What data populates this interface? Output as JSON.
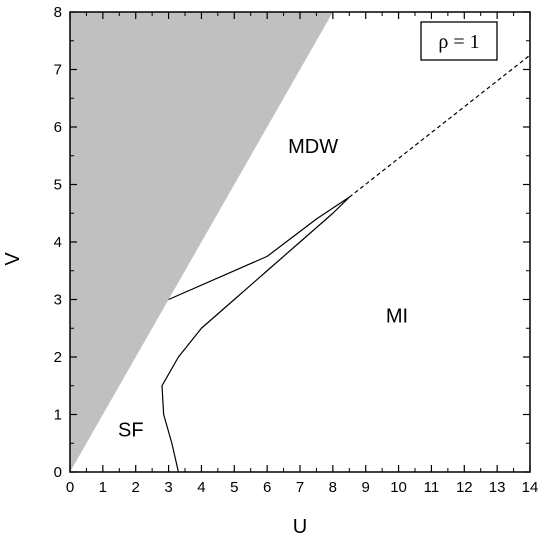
{
  "chart_data": {
    "type": "line",
    "title": "",
    "xlabel": "U",
    "ylabel": "V",
    "xlim": [
      0,
      14
    ],
    "ylim": [
      0,
      8
    ],
    "x_ticks": [
      "0",
      "1",
      "2",
      "3",
      "4",
      "5",
      "6",
      "7",
      "8",
      "9",
      "10",
      "11",
      "12",
      "13",
      "14"
    ],
    "y_ticks": [
      "0",
      "1",
      "2",
      "3",
      "4",
      "5",
      "6",
      "7",
      "8"
    ],
    "grid": false,
    "legend_text": "ρ = 1",
    "legend_placement": "top-right",
    "shaded_region": {
      "color": "#c0c0c0",
      "points": [
        [
          0,
          0
        ],
        [
          8,
          8
        ],
        [
          0,
          8
        ]
      ]
    },
    "series": [
      {
        "style": "solid",
        "color": "#000000",
        "points": [
          [
            3.3,
            0
          ],
          [
            3.1,
            0.5
          ],
          [
            2.85,
            1.0
          ],
          [
            2.8,
            1.5
          ],
          [
            3.3,
            2.0
          ],
          [
            4.0,
            2.5
          ],
          [
            5.0,
            3.0
          ],
          [
            6.0,
            3.5
          ],
          [
            7.0,
            4.0
          ],
          [
            8.0,
            4.5
          ],
          [
            8.5,
            4.78
          ]
        ]
      },
      {
        "style": "solid",
        "color": "#000000",
        "points": [
          [
            3.0,
            3.0
          ],
          [
            6.0,
            3.75
          ],
          [
            7.5,
            4.4
          ],
          [
            8.5,
            4.78
          ]
        ]
      },
      {
        "style": "dashed",
        "color": "#000000",
        "points": [
          [
            8.5,
            4.78
          ],
          [
            14.0,
            7.25
          ]
        ]
      }
    ],
    "annotations": [
      {
        "text": "MDW",
        "x": 7.4,
        "y": 5.55
      },
      {
        "text": "MI",
        "x": 9.95,
        "y": 2.6
      },
      {
        "text": "SF",
        "x": 1.85,
        "y": 0.62
      }
    ]
  }
}
